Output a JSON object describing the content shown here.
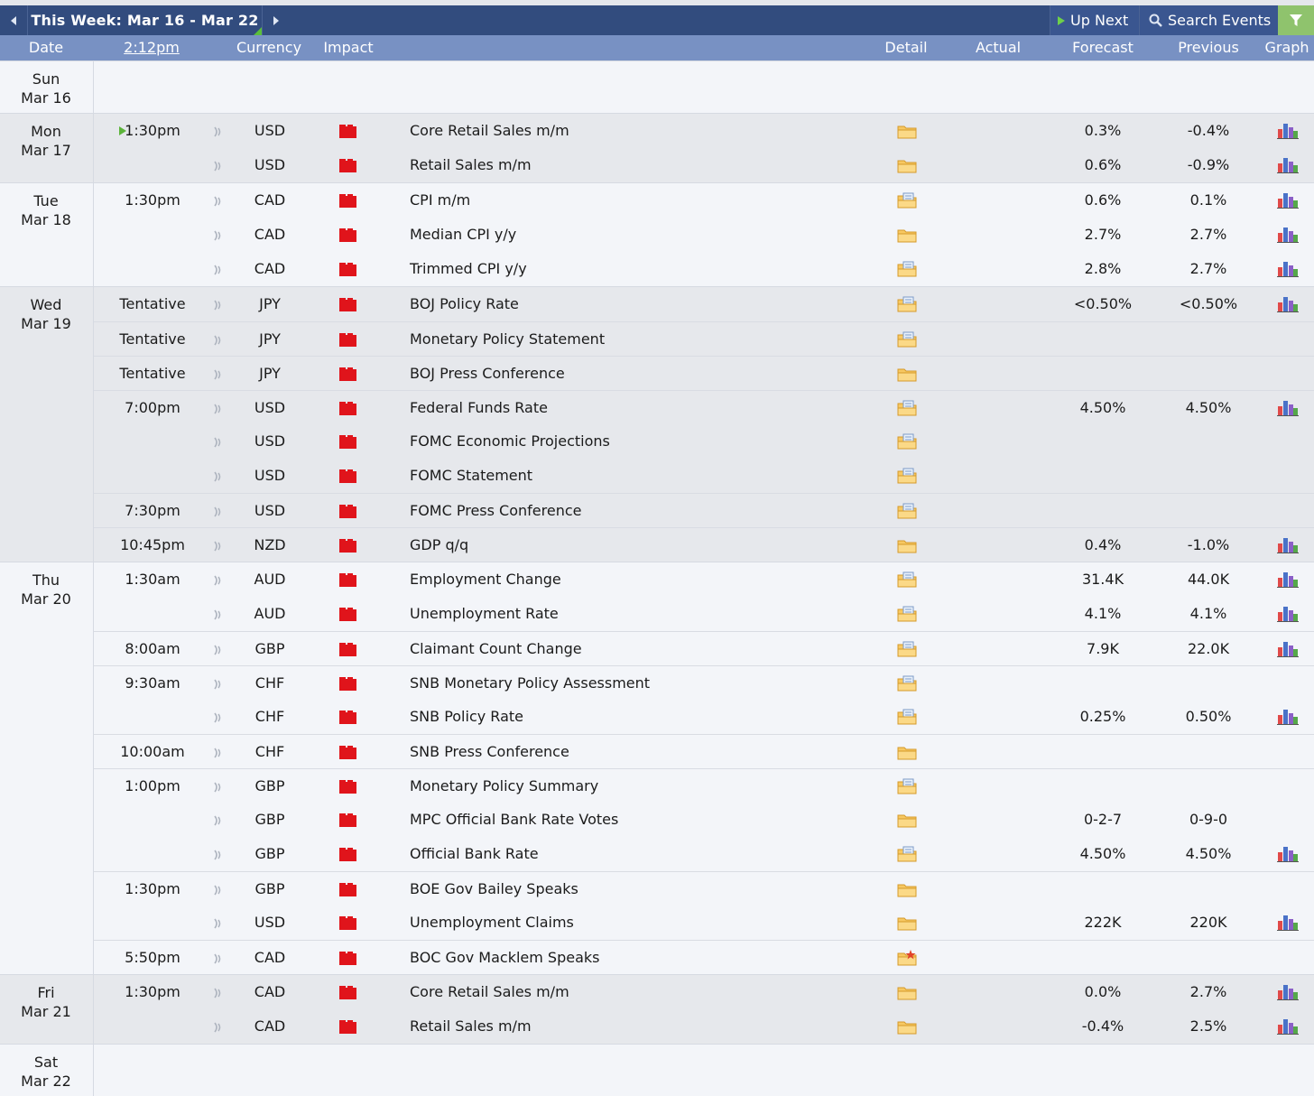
{
  "toolbar": {
    "week_title": "This Week: Mar 16 - Mar 22",
    "up_next_label": "Up Next",
    "search_label": "Search Events"
  },
  "header": {
    "date": "Date",
    "time": "2:12pm",
    "currency": "Currency",
    "impact": "Impact",
    "detail": "Detail",
    "actual": "Actual",
    "forecast": "Forecast",
    "previous": "Previous",
    "graph": "Graph"
  },
  "colors": {
    "toolbar_bg": "#324c7e",
    "header_bg": "#7891c3",
    "high_impact": "#e0141b",
    "filter_green": "#8fc36d"
  },
  "days": [
    {
      "day": "Sun",
      "date": "Mar 16",
      "shade": false,
      "events": []
    },
    {
      "day": "Mon",
      "date": "Mar 17",
      "shade": true,
      "events": [
        {
          "time": "1:30pm",
          "now": true,
          "currency": "USD",
          "event": "Core Retail Sales m/m",
          "detail": "folder",
          "forecast": "0.3%",
          "previous": "-0.4%",
          "graph": true
        },
        {
          "time": "",
          "currency": "USD",
          "event": "Retail Sales m/m",
          "detail": "folder",
          "forecast": "0.6%",
          "previous": "-0.9%",
          "graph": true
        }
      ]
    },
    {
      "day": "Tue",
      "date": "Mar 18",
      "shade": false,
      "events": [
        {
          "time": "1:30pm",
          "currency": "CAD",
          "event": "CPI m/m",
          "detail": "folder-doc",
          "forecast": "0.6%",
          "previous": "0.1%",
          "graph": true
        },
        {
          "time": "",
          "currency": "CAD",
          "event": "Median CPI y/y",
          "detail": "folder",
          "forecast": "2.7%",
          "previous": "2.7%",
          "graph": true
        },
        {
          "time": "",
          "currency": "CAD",
          "event": "Trimmed CPI y/y",
          "detail": "folder-doc",
          "forecast": "2.8%",
          "previous": "2.7%",
          "graph": true
        }
      ]
    },
    {
      "day": "Wed",
      "date": "Mar 19",
      "shade": true,
      "events": [
        {
          "time": "Tentative",
          "sep": false,
          "currency": "JPY",
          "event": "BOJ Policy Rate",
          "detail": "folder-doc",
          "forecast": "<0.50%",
          "previous": "<0.50%",
          "graph": true
        },
        {
          "time": "Tentative",
          "sep": true,
          "currency": "JPY",
          "event": "Monetary Policy Statement",
          "detail": "folder-doc",
          "forecast": "",
          "previous": "",
          "graph": false
        },
        {
          "time": "Tentative",
          "sep": true,
          "currency": "JPY",
          "event": "BOJ Press Conference",
          "detail": "folder",
          "forecast": "",
          "previous": "",
          "graph": false
        },
        {
          "time": "7:00pm",
          "sep": true,
          "currency": "USD",
          "event": "Federal Funds Rate",
          "detail": "folder-doc",
          "forecast": "4.50%",
          "previous": "4.50%",
          "graph": true
        },
        {
          "time": "",
          "currency": "USD",
          "event": "FOMC Economic Projections",
          "detail": "folder-doc",
          "forecast": "",
          "previous": "",
          "graph": false
        },
        {
          "time": "",
          "currency": "USD",
          "event": "FOMC Statement",
          "detail": "folder-doc",
          "forecast": "",
          "previous": "",
          "graph": false
        },
        {
          "time": "7:30pm",
          "sep": true,
          "currency": "USD",
          "event": "FOMC Press Conference",
          "detail": "folder-doc",
          "forecast": "",
          "previous": "",
          "graph": false
        },
        {
          "time": "10:45pm",
          "sep": true,
          "currency": "NZD",
          "event": "GDP q/q",
          "detail": "folder",
          "forecast": "0.4%",
          "previous": "-1.0%",
          "graph": true
        }
      ]
    },
    {
      "day": "Thu",
      "date": "Mar 20",
      "shade": false,
      "events": [
        {
          "time": "1:30am",
          "currency": "AUD",
          "event": "Employment Change",
          "detail": "folder-doc",
          "forecast": "31.4K",
          "previous": "44.0K",
          "graph": true
        },
        {
          "time": "",
          "currency": "AUD",
          "event": "Unemployment Rate",
          "detail": "folder-doc",
          "forecast": "4.1%",
          "previous": "4.1%",
          "graph": true
        },
        {
          "time": "8:00am",
          "sep": true,
          "currency": "GBP",
          "event": "Claimant Count Change",
          "detail": "folder-doc",
          "forecast": "7.9K",
          "previous": "22.0K",
          "graph": true
        },
        {
          "time": "9:30am",
          "sep": true,
          "currency": "CHF",
          "event": "SNB Monetary Policy Assessment",
          "detail": "folder-doc",
          "forecast": "",
          "previous": "",
          "graph": false
        },
        {
          "time": "",
          "currency": "CHF",
          "event": "SNB Policy Rate",
          "detail": "folder-doc",
          "forecast": "0.25%",
          "previous": "0.50%",
          "graph": true
        },
        {
          "time": "10:00am",
          "sep": true,
          "currency": "CHF",
          "event": "SNB Press Conference",
          "detail": "folder",
          "forecast": "",
          "previous": "",
          "graph": false
        },
        {
          "time": "1:00pm",
          "sep": true,
          "currency": "GBP",
          "event": "Monetary Policy Summary",
          "detail": "folder-doc",
          "forecast": "",
          "previous": "",
          "graph": false
        },
        {
          "time": "",
          "currency": "GBP",
          "event": "MPC Official Bank Rate Votes",
          "detail": "folder",
          "forecast": "0-2-7",
          "previous": "0-9-0",
          "graph": false
        },
        {
          "time": "",
          "currency": "GBP",
          "event": "Official Bank Rate",
          "detail": "folder-doc",
          "forecast": "4.50%",
          "previous": "4.50%",
          "graph": true
        },
        {
          "time": "1:30pm",
          "sep": true,
          "currency": "GBP",
          "event": "BOE Gov Bailey Speaks",
          "detail": "folder",
          "forecast": "",
          "previous": "",
          "graph": false
        },
        {
          "time": "",
          "currency": "USD",
          "event": "Unemployment Claims",
          "detail": "folder",
          "forecast": "222K",
          "previous": "220K",
          "graph": true
        },
        {
          "time": "5:50pm",
          "sep": true,
          "currency": "CAD",
          "event": "BOC Gov Macklem Speaks",
          "detail": "folder-star",
          "forecast": "",
          "previous": "",
          "graph": false
        }
      ]
    },
    {
      "day": "Fri",
      "date": "Mar 21",
      "shade": true,
      "events": [
        {
          "time": "1:30pm",
          "currency": "CAD",
          "event": "Core Retail Sales m/m",
          "detail": "folder",
          "forecast": "0.0%",
          "previous": "2.7%",
          "graph": true
        },
        {
          "time": "",
          "currency": "CAD",
          "event": "Retail Sales m/m",
          "detail": "folder",
          "forecast": "-0.4%",
          "previous": "2.5%",
          "graph": true
        }
      ]
    },
    {
      "day": "Sat",
      "date": "Mar 22",
      "shade": false,
      "events": []
    }
  ]
}
